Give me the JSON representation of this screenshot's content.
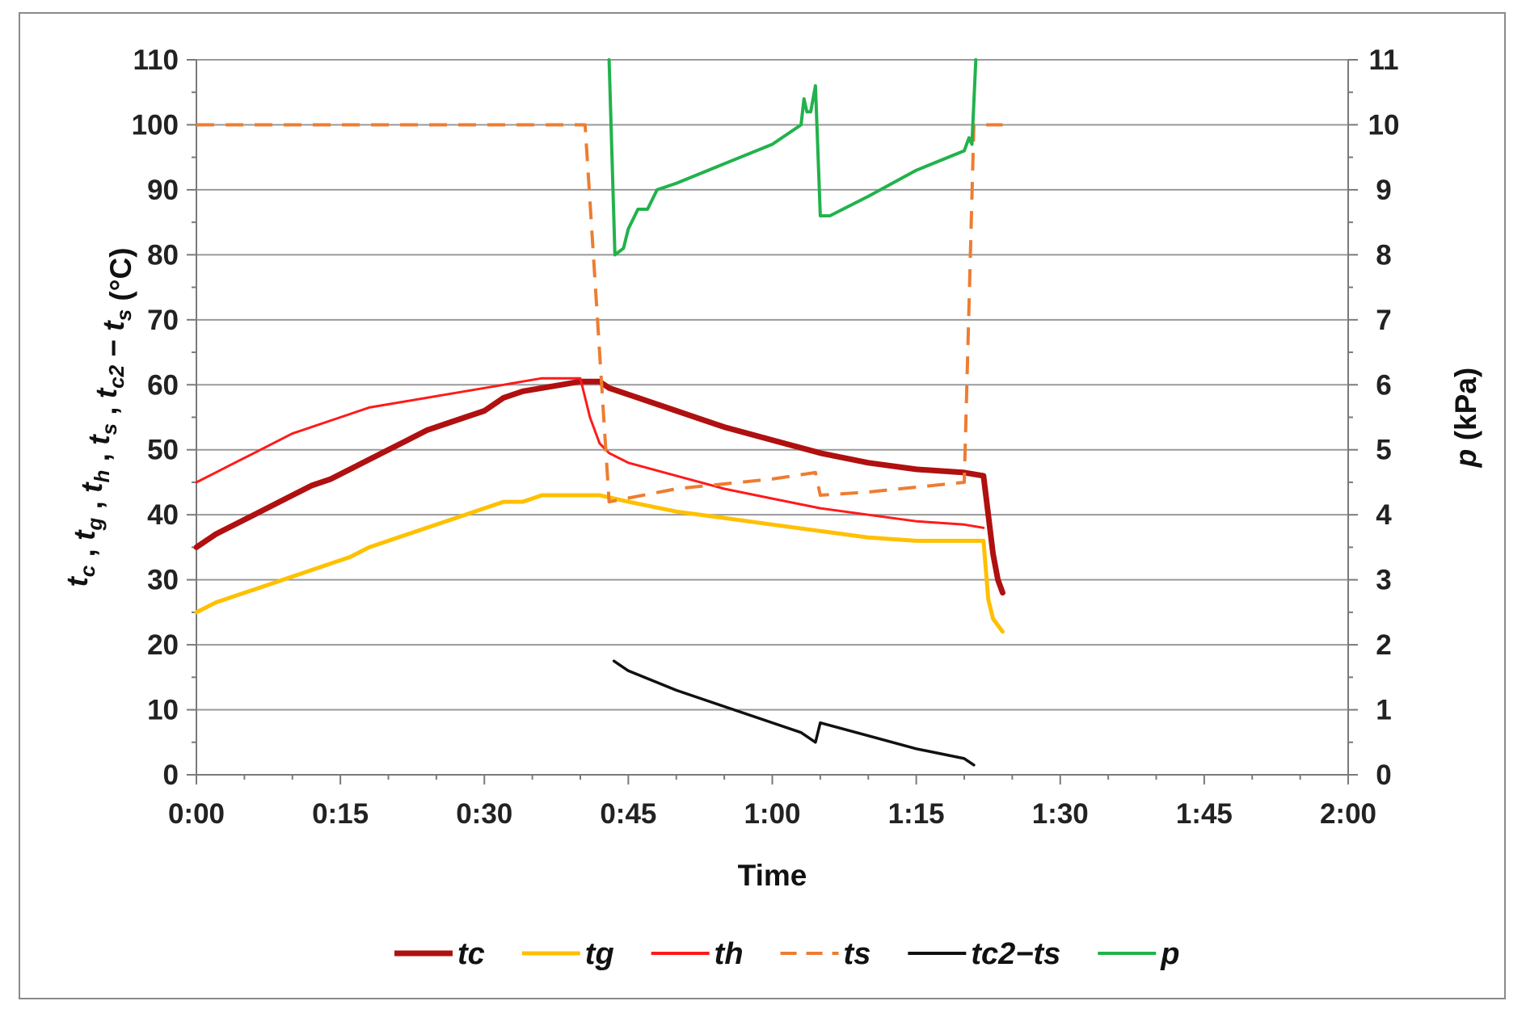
{
  "chart_data": {
    "type": "line",
    "xlabel": "Time",
    "ylabel": "t_c , t_g , t_h , t_s , t_c2 − t_s (°C)",
    "y2label": "p (kPa)",
    "ylabel_parts": [
      {
        "text": "t",
        "style": "italic"
      },
      {
        "text": "c",
        "style": "sub"
      },
      {
        "text": " , ",
        "style": "normal"
      },
      {
        "text": "t",
        "style": "italic"
      },
      {
        "text": "g",
        "style": "sub"
      },
      {
        "text": " , ",
        "style": "normal"
      },
      {
        "text": "t",
        "style": "italic"
      },
      {
        "text": "h",
        "style": "sub"
      },
      {
        "text": " , ",
        "style": "normal"
      },
      {
        "text": "t",
        "style": "italic"
      },
      {
        "text": "s",
        "style": "sub"
      },
      {
        "text": " , ",
        "style": "normal"
      },
      {
        "text": "t",
        "style": "italic"
      },
      {
        "text": "c2",
        "style": "sub"
      },
      {
        "text": " − ",
        "style": "normal"
      },
      {
        "text": "t",
        "style": "italic"
      },
      {
        "text": "s",
        "style": "sub"
      },
      {
        "text": " (°C)",
        "style": "normal"
      }
    ],
    "y2label_parts": [
      {
        "text": "p",
        "style": "italic"
      },
      {
        "text": " (kPa)",
        "style": "normal"
      }
    ],
    "xlim": [
      0,
      120
    ],
    "ylim": [
      0,
      110
    ],
    "y2lim": [
      0,
      11
    ],
    "x_tick_values": [
      0,
      15,
      30,
      45,
      60,
      75,
      90,
      105,
      120
    ],
    "x_tick_labels": [
      "0:00",
      "0:15",
      "0:30",
      "0:45",
      "1:00",
      "1:15",
      "1:30",
      "1:45",
      "2:00"
    ],
    "y_ticks": [
      0,
      10,
      20,
      30,
      40,
      50,
      60,
      70,
      80,
      90,
      100,
      110
    ],
    "y2_ticks": [
      0,
      1,
      2,
      3,
      4,
      5,
      6,
      7,
      8,
      9,
      10,
      11
    ],
    "grid": true,
    "legend_position": "bottom",
    "series": [
      {
        "name": "tc",
        "axis": "left",
        "color": "#b01010",
        "width": 7,
        "dash": "none",
        "x": [
          0,
          2,
          4,
          6,
          8,
          10,
          12,
          14,
          16,
          18,
          20,
          22,
          24,
          26,
          28,
          30,
          32,
          34,
          36,
          38,
          40,
          42,
          43,
          45,
          50,
          55,
          60,
          65,
          70,
          75,
          80,
          82,
          83,
          83.5,
          84
        ],
        "y": [
          35,
          37,
          38.5,
          40,
          41.5,
          43,
          44.5,
          45.5,
          47,
          48.5,
          50,
          51.5,
          53,
          54,
          55,
          56,
          58,
          59,
          59.5,
          60,
          60.5,
          60.5,
          59.5,
          58.5,
          56,
          53.5,
          51.5,
          49.5,
          48,
          47,
          46.5,
          46,
          34,
          30,
          28
        ]
      },
      {
        "name": "tg",
        "axis": "left",
        "color": "#ffc000",
        "width": 5,
        "dash": "none",
        "x": [
          0,
          2,
          4,
          6,
          8,
          10,
          12,
          14,
          16,
          18,
          20,
          22,
          24,
          26,
          28,
          30,
          32,
          34,
          36,
          38,
          40,
          42,
          45,
          50,
          55,
          60,
          65,
          70,
          75,
          80,
          82,
          82.5,
          83,
          84
        ],
        "y": [
          25,
          26.5,
          27.5,
          28.5,
          29.5,
          30.5,
          31.5,
          32.5,
          33.5,
          35,
          36,
          37,
          38,
          39,
          40,
          41,
          42,
          42,
          43,
          43,
          43,
          43,
          42,
          40.5,
          39.5,
          38.5,
          37.5,
          36.5,
          36,
          36,
          36,
          27,
          24,
          22
        ]
      },
      {
        "name": "th",
        "axis": "left",
        "color": "#ff1a1a",
        "width": 3,
        "dash": "none",
        "x": [
          0,
          2,
          4,
          6,
          8,
          10,
          12,
          14,
          16,
          18,
          20,
          22,
          24,
          26,
          28,
          30,
          32,
          34,
          36,
          38,
          40,
          41,
          42,
          43,
          45,
          50,
          55,
          60,
          65,
          70,
          75,
          80,
          82
        ],
        "y": [
          45,
          46.5,
          48,
          49.5,
          51,
          52.5,
          53.5,
          54.5,
          55.5,
          56.5,
          57,
          57.5,
          58,
          58.5,
          59,
          59.5,
          60,
          60.5,
          61,
          61,
          61,
          55,
          51,
          49.5,
          48,
          46,
          44,
          42.5,
          41,
          40,
          39,
          38.5,
          38
        ]
      },
      {
        "name": "ts",
        "axis": "left",
        "color": "#ed7d31",
        "width": 4,
        "dash": "22,14",
        "x": [
          0,
          40.5,
          43,
          50,
          60,
          64.5,
          65,
          70,
          80,
          81,
          84
        ],
        "y": [
          100,
          100,
          42,
          44,
          45.5,
          46.5,
          43,
          43.5,
          45,
          100,
          100
        ]
      },
      {
        "name": "tc2−ts",
        "axis": "left",
        "color": "#111111",
        "width": 3.5,
        "dash": "none",
        "x": [
          43.5,
          45,
          50,
          55,
          60,
          63,
          64.5,
          65,
          70,
          75,
          80,
          81
        ],
        "y": [
          17.5,
          16,
          13,
          10.5,
          8,
          6.5,
          5,
          8,
          6,
          4,
          2.5,
          1.5
        ]
      },
      {
        "name": "p",
        "axis": "right",
        "color": "#22b24c",
        "width": 4,
        "dash": "none",
        "x": [
          43,
          43.6,
          44.5,
          45,
          46,
          47,
          48,
          50,
          55,
          60,
          63,
          63.3,
          63.6,
          64,
          64.5,
          65,
          66,
          70,
          75,
          80,
          80.5,
          80.8,
          81.2
        ],
        "y": [
          11,
          8.0,
          8.1,
          8.4,
          8.7,
          8.7,
          9.0,
          9.1,
          9.4,
          9.7,
          10.0,
          10.4,
          10.2,
          10.2,
          10.6,
          8.6,
          8.6,
          8.9,
          9.3,
          9.6,
          9.8,
          9.7,
          11
        ]
      }
    ]
  }
}
